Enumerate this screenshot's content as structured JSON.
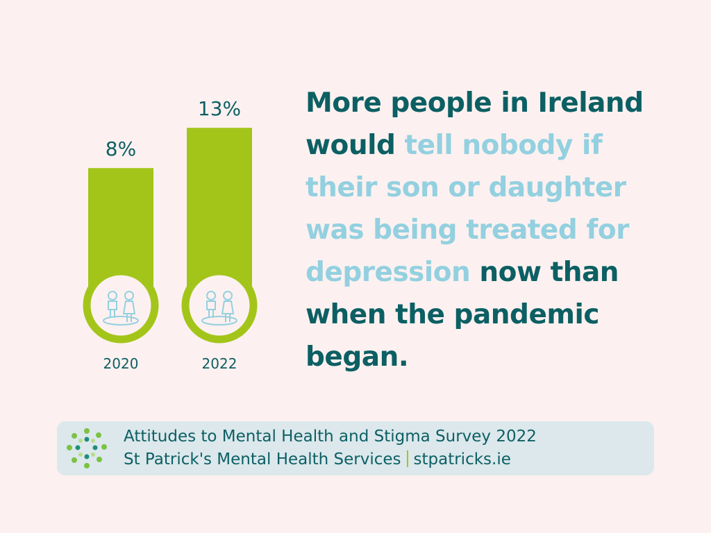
{
  "chart_data": {
    "type": "bar",
    "categories": [
      "2020",
      "2022"
    ],
    "values": [
      8,
      13
    ],
    "value_labels": [
      "8%",
      "13%"
    ],
    "color": "#a3c51a"
  },
  "headline": {
    "start": "More people in Ireland would",
    "highlight": "tell nobody if their son or daughter was being treated for depression",
    "end": "now than when the pandemic began."
  },
  "footer": {
    "line1": "Attitudes to Mental Health and Stigma Survey 2022",
    "line2_name": "St Patrick's Mental Health Services",
    "line2_site": "stpatricks.ie"
  }
}
